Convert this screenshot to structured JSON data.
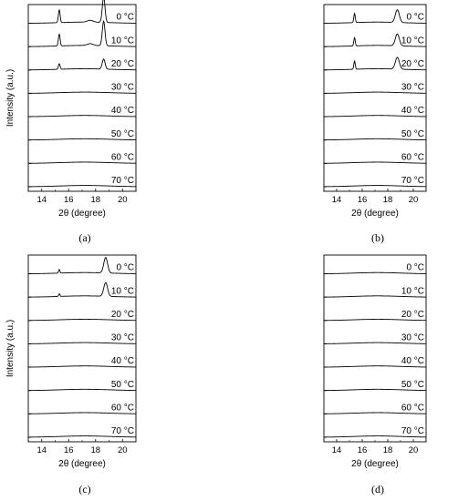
{
  "chart_data": [
    {
      "type": "line",
      "panel": "(a)",
      "xlabel": "2θ (degree)",
      "ylabel": "Intensity (a.u.)",
      "xlim": [
        13,
        21
      ],
      "xticks": [
        14,
        16,
        18,
        20
      ],
      "grid": false,
      "legend": "none",
      "series": [
        {
          "name": "0 °C",
          "peaks": [
            {
              "x": 15.3,
              "h": 14,
              "w": 0.09
            },
            {
              "x": 17.6,
              "h": 2,
              "w": 0.3
            },
            {
              "x": 18.6,
              "h": 28,
              "w": 0.14
            }
          ]
        },
        {
          "name": "10 °C",
          "peaks": [
            {
              "x": 15.3,
              "h": 13,
              "w": 0.09
            },
            {
              "x": 17.6,
              "h": 2,
              "w": 0.3
            },
            {
              "x": 18.6,
              "h": 27,
              "w": 0.14
            }
          ]
        },
        {
          "name": "20 °C",
          "peaks": [
            {
              "x": 15.3,
              "h": 6,
              "w": 0.09
            },
            {
              "x": 18.6,
              "h": 11,
              "w": 0.15
            }
          ]
        },
        {
          "name": "30 °C",
          "peaks": []
        },
        {
          "name": "40 °C",
          "peaks": []
        },
        {
          "name": "50 °C",
          "peaks": []
        },
        {
          "name": "60 °C",
          "peaks": []
        },
        {
          "name": "70 °C",
          "peaks": []
        }
      ]
    },
    {
      "type": "line",
      "panel": "(b)",
      "xlabel": "2θ (degree)",
      "ylabel": "",
      "xlim": [
        13,
        21
      ],
      "xticks": [
        14,
        16,
        18,
        20
      ],
      "grid": false,
      "legend": "none",
      "series": [
        {
          "name": "0 °C",
          "peaks": [
            {
              "x": 15.4,
              "h": 10,
              "w": 0.08
            },
            {
              "x": 18.75,
              "h": 14,
              "w": 0.22
            }
          ]
        },
        {
          "name": "10 °C",
          "peaks": [
            {
              "x": 15.4,
              "h": 9,
              "w": 0.08
            },
            {
              "x": 18.75,
              "h": 13,
              "w": 0.22
            }
          ]
        },
        {
          "name": "20 °C",
          "peaks": [
            {
              "x": 15.4,
              "h": 9,
              "w": 0.08
            },
            {
              "x": 18.75,
              "h": 13,
              "w": 0.22
            }
          ]
        },
        {
          "name": "30 °C",
          "peaks": []
        },
        {
          "name": "40 °C",
          "peaks": []
        },
        {
          "name": "50 °C",
          "peaks": []
        },
        {
          "name": "60 °C",
          "peaks": []
        },
        {
          "name": "70 °C",
          "peaks": []
        }
      ]
    },
    {
      "type": "line",
      "panel": "(c)",
      "xlabel": "2θ (degree)",
      "ylabel": "Intensity (a.u.)",
      "xlim": [
        13,
        21
      ],
      "xticks": [
        14,
        16,
        18,
        20
      ],
      "grid": false,
      "legend": "none",
      "series": [
        {
          "name": "0 °C",
          "peaks": [
            {
              "x": 15.3,
              "h": 4,
              "w": 0.07
            },
            {
              "x": 18.75,
              "h": 17,
              "w": 0.2
            }
          ]
        },
        {
          "name": "10 °C",
          "peaks": [
            {
              "x": 15.3,
              "h": 3,
              "w": 0.07
            },
            {
              "x": 18.75,
              "h": 15,
              "w": 0.2
            }
          ]
        },
        {
          "name": "20 °C",
          "peaks": []
        },
        {
          "name": "30 °C",
          "peaks": []
        },
        {
          "name": "40 °C",
          "peaks": []
        },
        {
          "name": "50 °C",
          "peaks": []
        },
        {
          "name": "60 °C",
          "peaks": []
        },
        {
          "name": "70 °C",
          "peaks": []
        }
      ]
    },
    {
      "type": "line",
      "panel": "(d)",
      "xlabel": "2θ (degree)",
      "ylabel": "",
      "xlim": [
        13,
        21
      ],
      "xticks": [
        14,
        16,
        18,
        20
      ],
      "grid": false,
      "legend": "none",
      "series": [
        {
          "name": "0 °C",
          "peaks": []
        },
        {
          "name": "10 °C",
          "peaks": []
        },
        {
          "name": "20 °C",
          "peaks": []
        },
        {
          "name": "30 °C",
          "peaks": []
        },
        {
          "name": "40 °C",
          "peaks": []
        },
        {
          "name": "50 °C",
          "peaks": []
        },
        {
          "name": "60 °C",
          "peaks": []
        },
        {
          "name": "70 °C",
          "peaks": []
        }
      ]
    }
  ]
}
